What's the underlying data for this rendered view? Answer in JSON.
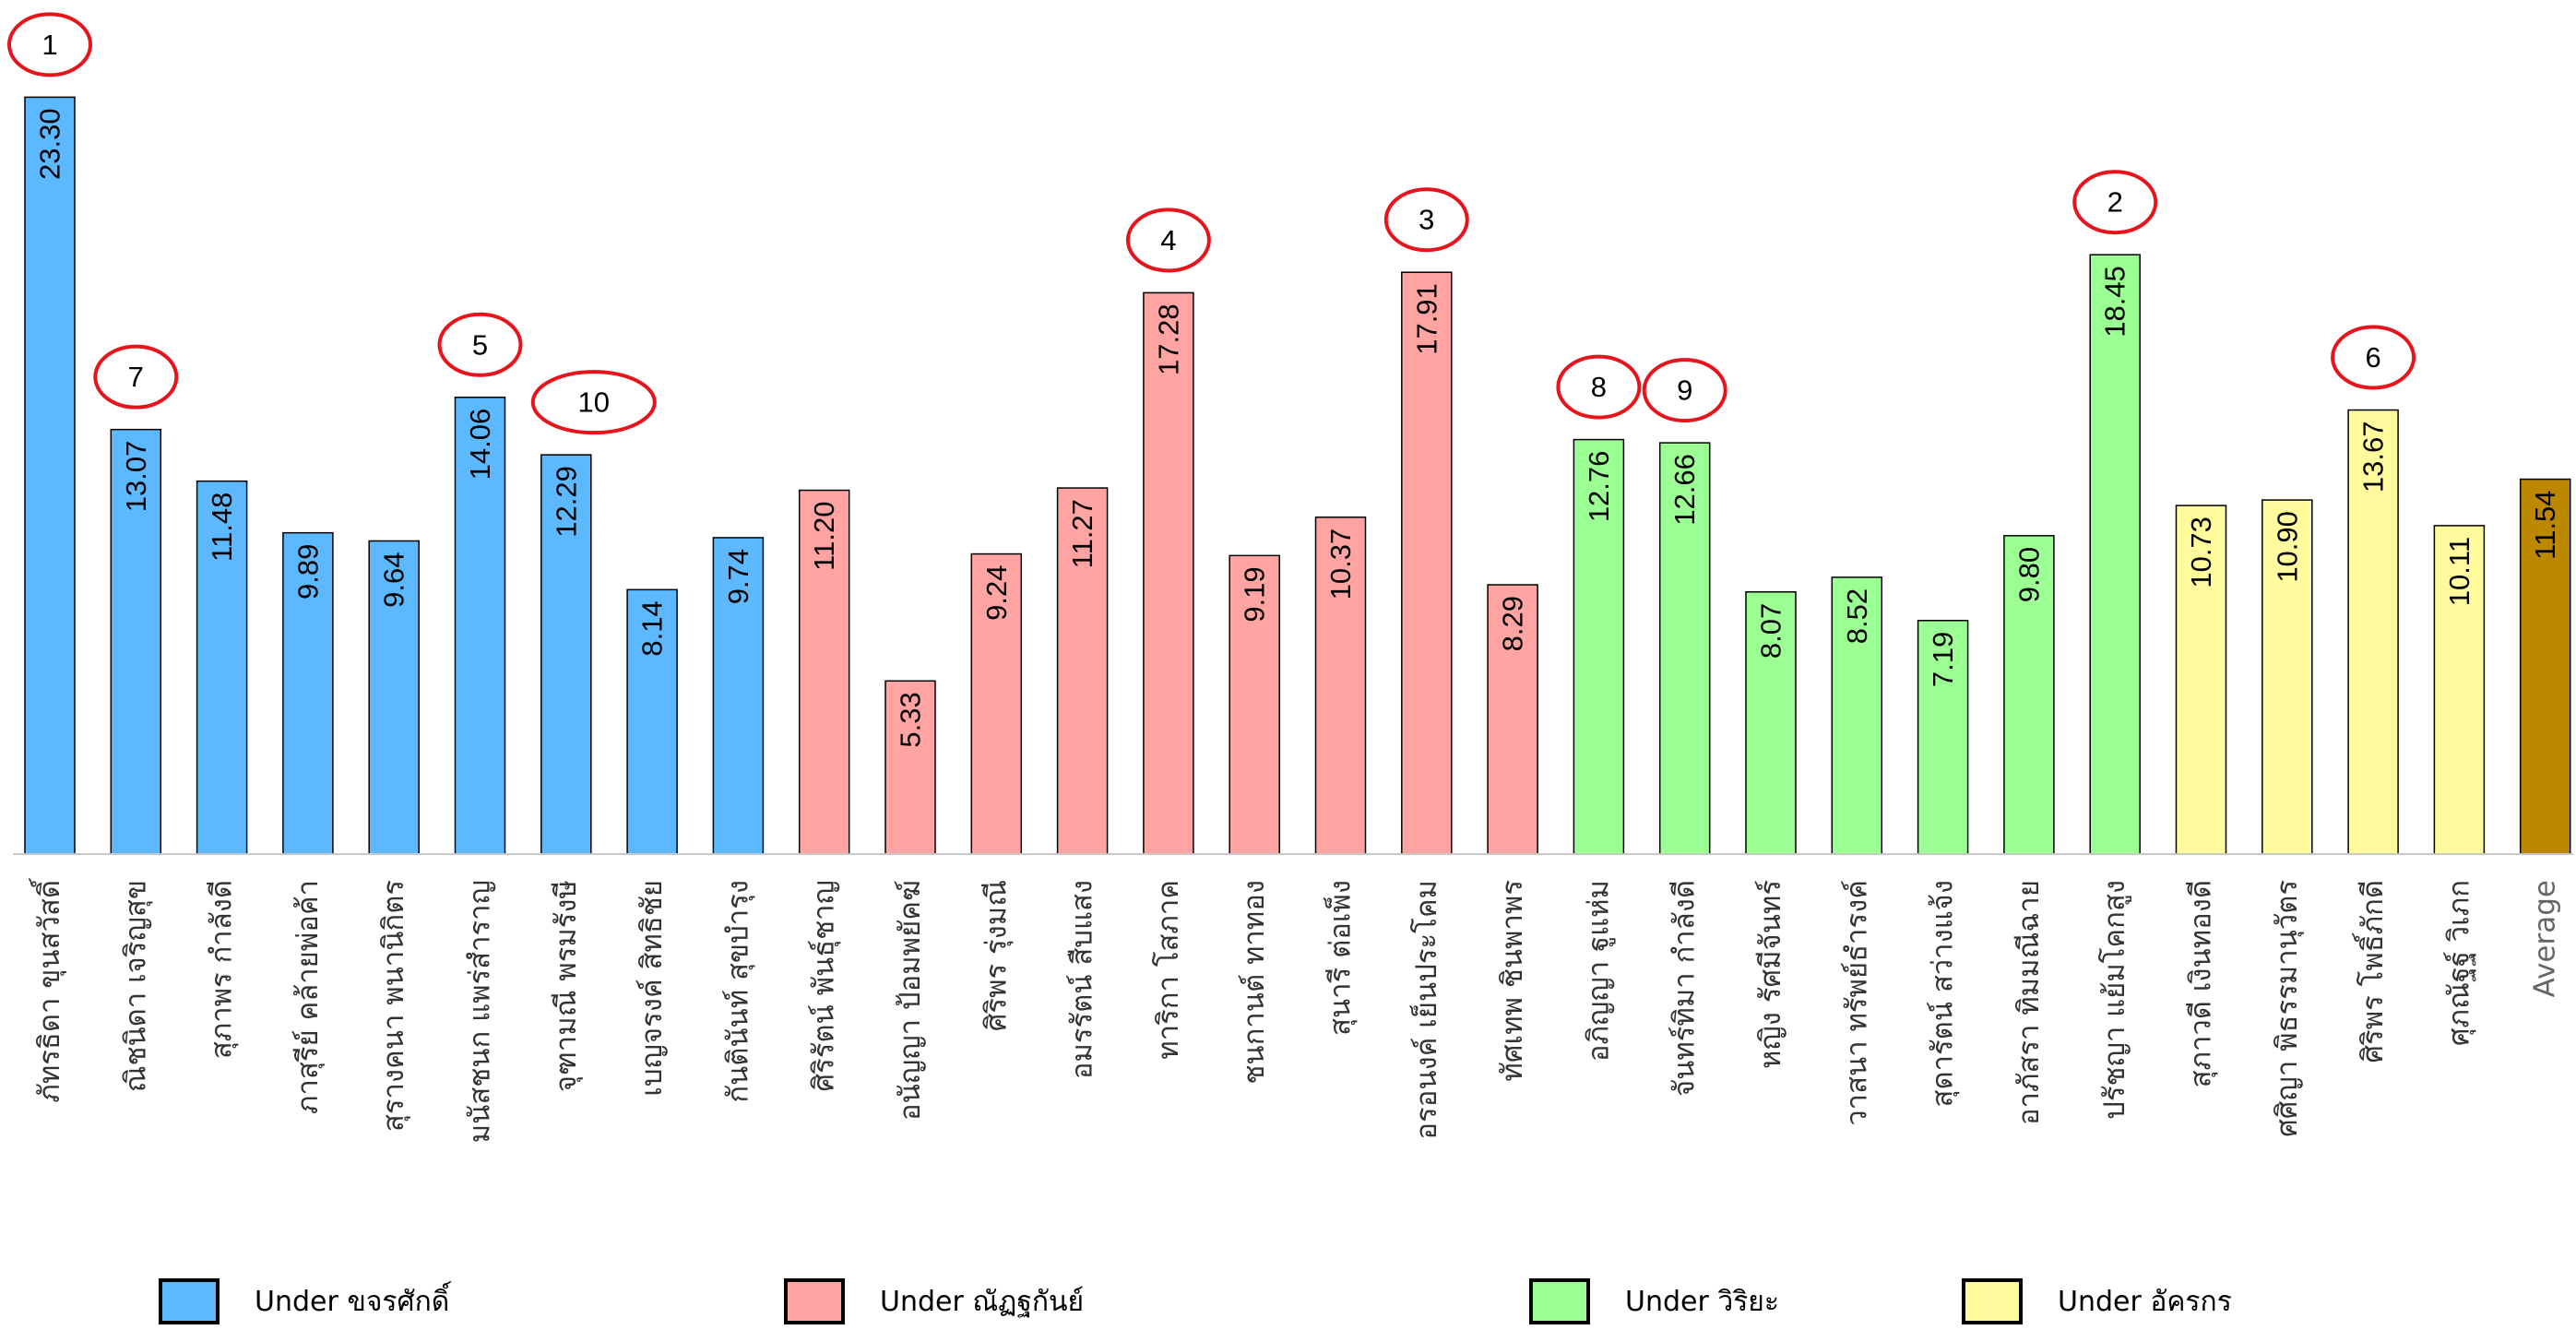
{
  "chart_data": {
    "type": "bar",
    "title": "",
    "xlabel": "",
    "ylabel": "",
    "ylim": [
      0,
      24
    ],
    "grid": false,
    "legend_position": "bottom",
    "categories": [
      "ภัทรธิดา ขุนสวัสดิ์",
      "ณิชนิดา เจริญสุข",
      "สุภาพร กำลังดี",
      "ภาสุรีย์ คล้ายพ่อค้า",
      "สุรางคนา พนานิกิตร",
      "มนัสชนก แพร่สำราญ",
      "จุฑามณี พรมรังษี",
      "เบญจรงค์ สิทธิชัย",
      "กันตินันท์ สุขบำรุง",
      "ศิริรัตน์ พันธุ์ชาญ",
      "อนัญญา ป้อมพยัคฆ์",
      "ศิริพร รุ่งมณี",
      "อมรรัตน์ สืบแสง",
      "ทาริกา โสภาค",
      "ชนกานต์ ทาทอง",
      "สุนารี ต่อเพ็ง",
      "อรอนงค์ เย็นประโคม",
      "ทัศเทพ ชินพาพร",
      "อภิญญา ฐูแห่ม",
      "จันทร์ทิมา กำลังดี",
      "หญิง รัศมีจันทร์",
      "วาสนา ทรัพย์ธำรงค์",
      "สุดารัตน์ สว่างแจ้ง",
      "อาภัสรา ทิมมณีฉาย",
      "ปรัชญา แย้มโคกสูง",
      "สุภาวดี เงินทองดี",
      "ศศิญา พิธรรมานุวัตร",
      "ศิริพร โพธิ์ภักดี",
      "ศุภณัฐฐ์ วิเภก",
      "Average"
    ],
    "values": [
      23.3,
      13.07,
      11.48,
      9.89,
      9.64,
      14.06,
      12.29,
      8.14,
      9.74,
      11.2,
      5.33,
      9.24,
      11.27,
      17.28,
      9.19,
      10.37,
      17.91,
      8.29,
      12.76,
      12.66,
      8.07,
      8.52,
      7.19,
      9.8,
      18.45,
      10.73,
      10.9,
      13.67,
      10.11,
      11.54
    ],
    "value_labels": [
      "23.30",
      "13.07",
      "11.48",
      "9.89",
      "9.64",
      "14.06",
      "12.29",
      "8.14",
      "9.74",
      "11.20",
      "5.33",
      "9.24",
      "11.27",
      "17.28",
      "9.19",
      "10.37",
      "17.91",
      "8.29",
      "12.76",
      "12.66",
      "8.07",
      "8.52",
      "7.19",
      "9.80",
      "18.45",
      "10.73",
      "10.90",
      "13.67",
      "10.11",
      "11.54"
    ],
    "groups": [
      0,
      0,
      0,
      0,
      0,
      0,
      0,
      0,
      0,
      1,
      1,
      1,
      1,
      1,
      1,
      1,
      1,
      1,
      2,
      2,
      2,
      2,
      2,
      2,
      2,
      3,
      3,
      3,
      3,
      4
    ],
    "group_colors": [
      "#5cb8ff",
      "#ffa3a3",
      "#9bff94",
      "#fffb9c",
      "#bb8800"
    ],
    "ranks": [
      {
        "bar": 0,
        "label": "1"
      },
      {
        "bar": 24,
        "label": "2"
      },
      {
        "bar": 16,
        "label": "3"
      },
      {
        "bar": 13,
        "label": "4"
      },
      {
        "bar": 5,
        "label": "5"
      },
      {
        "bar": 27,
        "label": "6"
      },
      {
        "bar": 1,
        "label": "7"
      },
      {
        "bar": 18,
        "label": "8"
      },
      {
        "bar": 19,
        "label": "9"
      },
      {
        "bar": 6,
        "label": "10"
      }
    ],
    "legend": [
      {
        "label": "Under ขจรศักดิ์",
        "color": "#5cb8ff"
      },
      {
        "label": "Under ณัฏฐกันย์",
        "color": "#ffa3a3"
      },
      {
        "label": "Under วิริยะ",
        "color": "#9bff94"
      },
      {
        "label": "Under อัครกร",
        "color": "#fffb9c"
      }
    ]
  }
}
